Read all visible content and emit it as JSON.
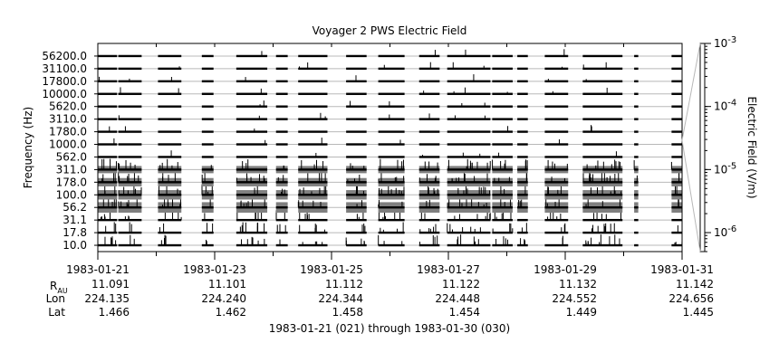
{
  "chart_data": {
    "type": "heatmap",
    "title": "Voyager 2 PWS Electric Field",
    "ylabel": "Frequency (Hz)",
    "cbar_label": "Electric Field (V/m)",
    "frequency_channels_hz": [
      "10.0",
      "17.8",
      "31.1",
      "56.2",
      "100.0",
      "178.0",
      "311.0",
      "562.0",
      "1000.0",
      "1780.0",
      "3110.0",
      "5620.0",
      "10000.0",
      "17800.0",
      "31100.0",
      "56200.0"
    ],
    "colorbar": {
      "scale": "log",
      "range": [
        5e-07,
        0.001
      ],
      "ticks": [
        {
          "value": 0.001,
          "base": "10",
          "exp": "-3"
        },
        {
          "value": 0.0001,
          "base": "10",
          "exp": "-4"
        },
        {
          "value": 1e-05,
          "base": "10",
          "exp": "-5"
        },
        {
          "value": 1e-06,
          "base": "10",
          "exp": "-6"
        }
      ]
    },
    "x_range_days": [
      0,
      10
    ],
    "x_ticks": [
      {
        "day": 0,
        "date": "1983-01-21",
        "r": "11.091",
        "lon": "224.135",
        "lat": "1.466"
      },
      {
        "day": 2,
        "date": "1983-01-23",
        "r": "11.101",
        "lon": "224.240",
        "lat": "1.462"
      },
      {
        "day": 4,
        "date": "1983-01-25",
        "r": "11.112",
        "lon": "224.344",
        "lat": "1.458"
      },
      {
        "day": 6,
        "date": "1983-01-27",
        "r": "11.122",
        "lon": "224.448",
        "lat": "1.454"
      },
      {
        "day": 8,
        "date": "1983-01-29",
        "r": "11.132",
        "lon": "224.552",
        "lat": "1.449"
      },
      {
        "day": 10,
        "date": "1983-01-31",
        "r": "11.142",
        "lon": "224.656",
        "lat": "1.445"
      }
    ],
    "data_intervals_days": [
      [
        0.0,
        0.33
      ],
      [
        0.35,
        0.75
      ],
      [
        1.03,
        1.43
      ],
      [
        1.78,
        1.98
      ],
      [
        2.37,
        2.9
      ],
      [
        3.05,
        3.25
      ],
      [
        3.43,
        3.93
      ],
      [
        4.25,
        4.6
      ],
      [
        4.8,
        5.25
      ],
      [
        5.5,
        5.85
      ],
      [
        5.98,
        6.72
      ],
      [
        6.75,
        7.1
      ],
      [
        7.18,
        7.36
      ],
      [
        7.65,
        8.05
      ],
      [
        8.3,
        8.98
      ],
      [
        9.18,
        9.25
      ],
      [
        9.82,
        10.0
      ]
    ],
    "footer": {
      "ephem_labels": {
        "r_base": "R",
        "r_sub": "AU",
        "lon": "Lon",
        "lat": "Lat"
      },
      "range_text": "1983-01-21 (021) through 1983-01-30 (030)"
    },
    "colors": {
      "ink": "#000000",
      "gray": "#7f7f7f",
      "grid": "#b8b8b8"
    }
  }
}
